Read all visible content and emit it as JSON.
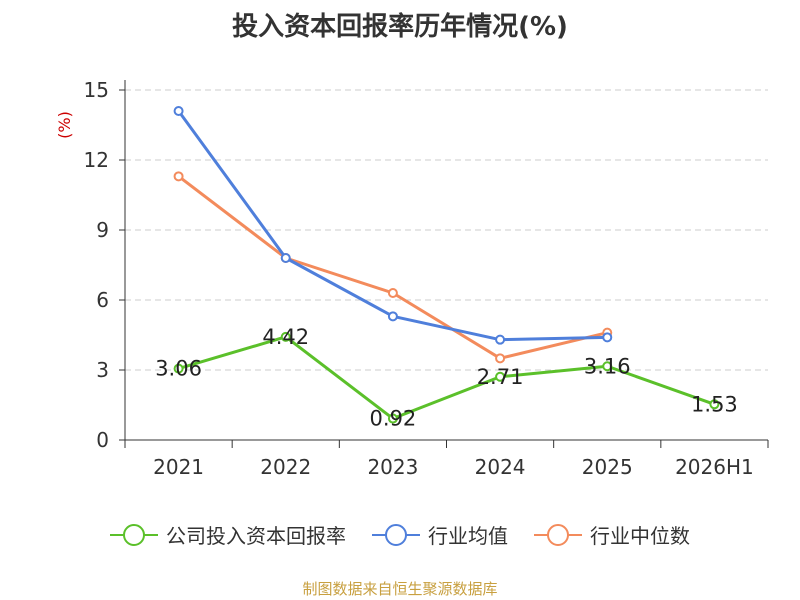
{
  "chart_data": {
    "type": "line",
    "title": "投入资本回报率历年情况(%)",
    "ylabel": "(%)",
    "categories": [
      "2021",
      "2022",
      "2023",
      "2024",
      "2025",
      "2026H1"
    ],
    "y_ticks": [
      "0",
      "3",
      "6",
      "9",
      "12",
      "15"
    ],
    "ylim": [
      0,
      15
    ],
    "grid": true,
    "legend_position": "bottom",
    "series": [
      {
        "name": "公司投入资本回报率",
        "color": "#5bc02a",
        "values": [
          3.06,
          4.42,
          0.92,
          2.71,
          3.16,
          1.53
        ],
        "labels": [
          "3.06",
          "4.42",
          "0.92",
          "2.71",
          "3.16",
          "1.53"
        ]
      },
      {
        "name": "行业均值",
        "color": "#4f7fdb",
        "values": [
          14.1,
          7.8,
          5.3,
          4.3,
          4.4,
          null
        ]
      },
      {
        "name": "行业中位数",
        "color": "#f38b5c",
        "values": [
          11.3,
          7.8,
          6.3,
          3.5,
          4.6,
          null
        ]
      }
    ]
  },
  "source": "制图数据来自恒生聚源数据库"
}
